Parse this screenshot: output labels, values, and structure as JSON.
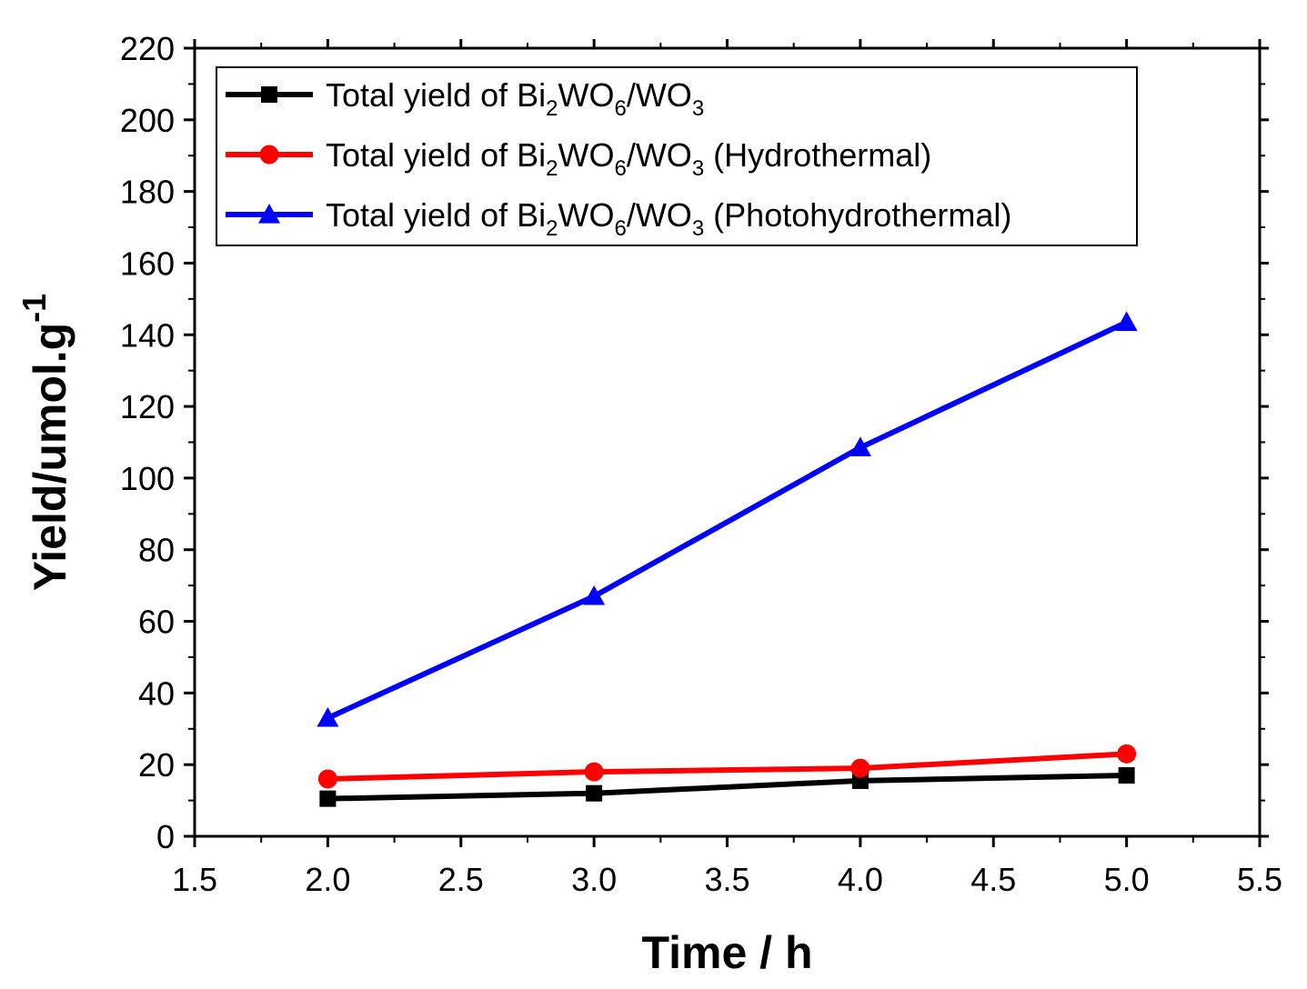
{
  "chart_data": {
    "type": "line",
    "xlabel": "Time / h",
    "ylabel": {
      "main": "Yield/umol.g",
      "sup": "-1"
    },
    "xlim": [
      1.5,
      5.5
    ],
    "ylim": [
      0,
      220
    ],
    "x_ticks": [
      "1.5",
      "2.0",
      "2.5",
      "3.0",
      "3.5",
      "4.0",
      "4.5",
      "5.0",
      "5.5"
    ],
    "y_ticks": [
      "0",
      "20",
      "40",
      "60",
      "80",
      "100",
      "120",
      "140",
      "160",
      "180",
      "200",
      "220"
    ],
    "grid": false,
    "legend_position": "top-left",
    "x": [
      2.0,
      3.0,
      4.0,
      5.0
    ],
    "series": [
      {
        "name": "Total yield of Bi2WO6/WO3",
        "name_parts": [
          {
            "t": "Total yield of Bi"
          },
          {
            "t": "2",
            "sub": true
          },
          {
            "t": "WO"
          },
          {
            "t": "6",
            "sub": true
          },
          {
            "t": "/WO"
          },
          {
            "t": "3",
            "sub": true
          }
        ],
        "values": [
          10.5,
          12.0,
          15.5,
          17.0
        ],
        "color": "#000000",
        "marker": "square"
      },
      {
        "name": "Total yield of Bi2WO6/WO3 (Hydrothermal)",
        "name_parts": [
          {
            "t": "Total yield of Bi"
          },
          {
            "t": "2",
            "sub": true
          },
          {
            "t": "WO"
          },
          {
            "t": "6",
            "sub": true
          },
          {
            "t": "/WO"
          },
          {
            "t": "3",
            "sub": true
          },
          {
            "t": " (Hydrothermal)"
          }
        ],
        "values": [
          16.0,
          18.0,
          19.0,
          23.0
        ],
        "color": "#ff0000",
        "marker": "circle"
      },
      {
        "name": "Total yield of Bi2WO6/WO3 (Photohydrothermal)",
        "name_parts": [
          {
            "t": "Total yield of Bi"
          },
          {
            "t": "2",
            "sub": true
          },
          {
            "t": "WO"
          },
          {
            "t": "6",
            "sub": true
          },
          {
            "t": "/WO"
          },
          {
            "t": "3",
            "sub": true
          },
          {
            "t": " (Photohydrothermal)"
          }
        ],
        "values": [
          33.0,
          67.0,
          108.5,
          143.5
        ],
        "color": "#0000ff",
        "marker": "triangle"
      }
    ]
  }
}
